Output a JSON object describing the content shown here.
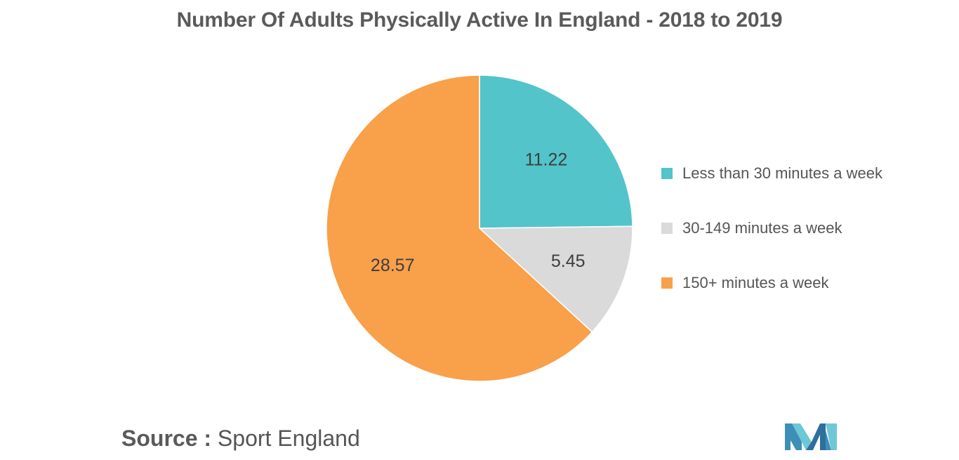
{
  "title": "Number Of Adults Physically Active In England - 2018 to 2019",
  "source": {
    "prefix": "Source :",
    "text": "Sport England"
  },
  "chart_data": {
    "type": "pie",
    "title": "Number Of Adults Physically Active In England - 2018 to 2019",
    "legend_position": "right",
    "slices": [
      {
        "label": "Less than 30 minutes a week",
        "value": 11.22,
        "display": "11.22",
        "color": "#52c4ca"
      },
      {
        "label": "30-149 minutes a week",
        "value": 5.45,
        "display": "5.45",
        "color": "#dadada"
      },
      {
        "label": "150+ minutes a week",
        "value": 28.57,
        "display": "28.57",
        "color": "#f9a04a"
      }
    ]
  },
  "logo": {
    "icon": "company-logo-icon",
    "colors": [
      "#3d8fb8",
      "#6ec7d6",
      "#2e6f9e"
    ]
  }
}
